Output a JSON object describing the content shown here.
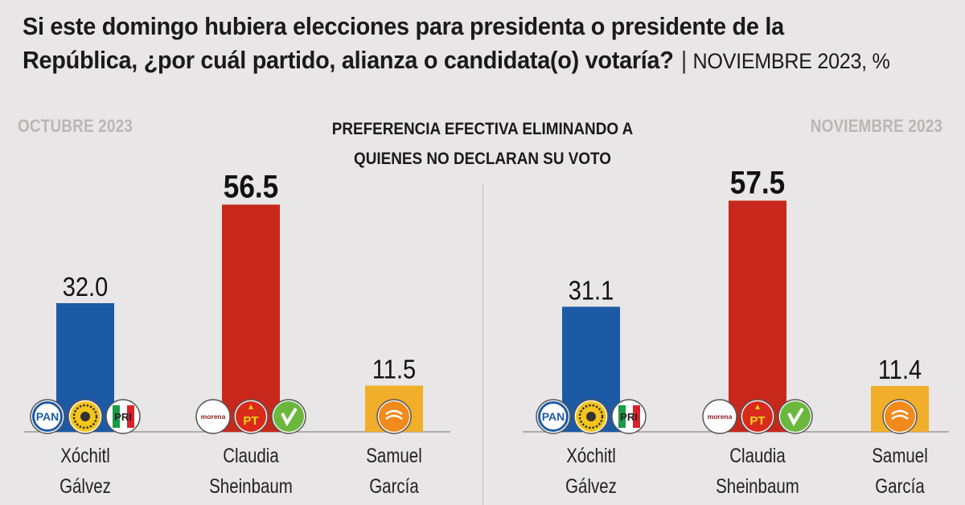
{
  "headline": {
    "line1": "Si este domingo hubiera elecciones para presidenta o presidente de la",
    "line2": "República, ¿por cuál partido, alianza o candidata(o) votaría?",
    "separator": "|",
    "period": "NOVIEMBRE 2023, %"
  },
  "subtitle": {
    "line1": "PREFERENCIA EFECTIVA ELIMINANDO A",
    "line2": "QUIENES NO DECLARAN SU VOTO"
  },
  "colors": {
    "background": "#e8e6e6",
    "galvez": "#1d5aa6",
    "sheinbaum": "#c8281b",
    "garcia": "#f0ae2a"
  },
  "chart_data": [
    {
      "type": "bar",
      "title": "OCTUBRE 2023",
      "categories": [
        "Xóchitl Gálvez",
        "Claudia Sheinbaum",
        "Samuel García"
      ],
      "category_lines": [
        [
          "Xóchitl",
          "Gálvez"
        ],
        [
          "Claudia",
          "Sheinbaum"
        ],
        [
          "Samuel",
          "García"
        ]
      ],
      "values": [
        32.0,
        56.5,
        11.5
      ],
      "value_labels": [
        "32.0",
        "56.5",
        "11.5"
      ],
      "highlight_index": 1,
      "party_logos": [
        [
          "PAN",
          "PRD",
          "PRI"
        ],
        [
          "morena",
          "PT",
          "PVEM"
        ],
        [
          "MC"
        ]
      ],
      "ylim": [
        0,
        60
      ],
      "grid": false
    },
    {
      "type": "bar",
      "title": "NOVIEMBRE 2023",
      "categories": [
        "Xóchitl Gálvez",
        "Claudia Sheinbaum",
        "Samuel García"
      ],
      "category_lines": [
        [
          "Xóchitl",
          "Gálvez"
        ],
        [
          "Claudia",
          "Sheinbaum"
        ],
        [
          "Samuel",
          "García"
        ]
      ],
      "values": [
        31.1,
        57.5,
        11.4
      ],
      "value_labels": [
        "31.1",
        "57.5",
        "11.4"
      ],
      "highlight_index": 1,
      "party_logos": [
        [
          "PAN",
          "PRD",
          "PRI"
        ],
        [
          "morena",
          "PT",
          "PVEM"
        ],
        [
          "MC"
        ]
      ],
      "ylim": [
        0,
        60
      ],
      "grid": false
    }
  ]
}
